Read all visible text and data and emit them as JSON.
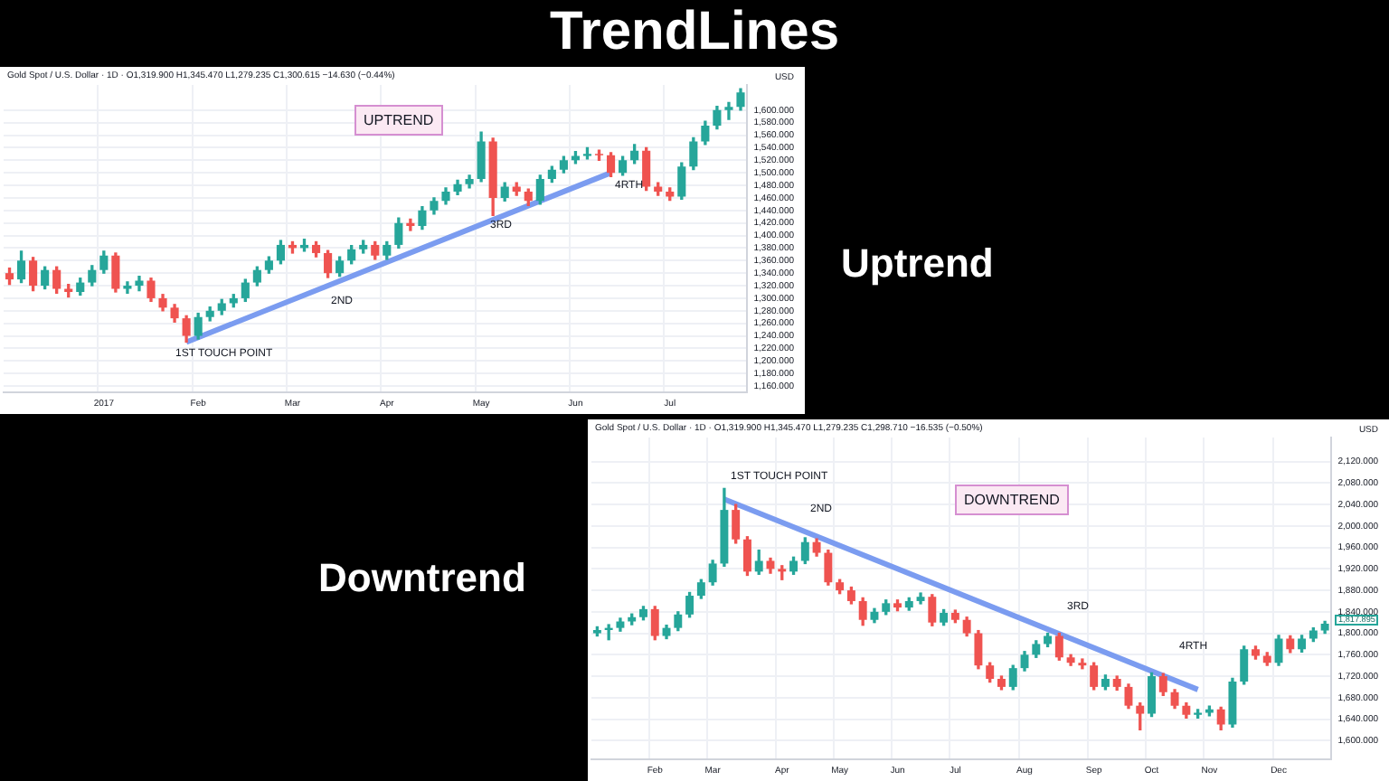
{
  "chart_data": [
    {
      "type": "candlestick",
      "title": "TrendLines",
      "subtitle": "Gold Spot / U.S. Dollar · 1D · O1,319.900 H1,345.470 L1,279.235 C1,300.615 −14.630 (−0.44%)",
      "ylabel": "USD",
      "categories": [
        null,
        null,
        null,
        null,
        null,
        null,
        null,
        null,
        "2017",
        null,
        null,
        null,
        null,
        null,
        null,
        null,
        "Feb",
        null,
        null,
        null,
        null,
        null,
        null,
        null,
        "Mar",
        null,
        null,
        null,
        null,
        null,
        null,
        null,
        "Apr",
        null,
        null,
        null,
        null,
        null,
        null,
        null,
        "May",
        null,
        null,
        null,
        null,
        null,
        null,
        null,
        "Jun",
        null,
        null,
        null,
        null,
        null,
        null,
        null,
        "Jul",
        null,
        null,
        null,
        null,
        null,
        null
      ],
      "ohlc": [
        [
          1340,
          1348,
          1322,
          1330
        ],
        [
          1330,
          1375,
          1325,
          1360
        ],
        [
          1360,
          1365,
          1312,
          1320
        ],
        [
          1320,
          1350,
          1315,
          1345
        ],
        [
          1345,
          1350,
          1308,
          1315
        ],
        [
          1315,
          1322,
          1302,
          1310
        ],
        [
          1310,
          1332,
          1305,
          1325
        ],
        [
          1325,
          1352,
          1320,
          1345
        ],
        [
          1345,
          1375,
          1340,
          1368
        ],
        [
          1368,
          1372,
          1310,
          1315
        ],
        [
          1315,
          1326,
          1308,
          1320
        ],
        [
          1320,
          1335,
          1312,
          1328
        ],
        [
          1328,
          1332,
          1295,
          1300
        ],
        [
          1300,
          1306,
          1280,
          1285
        ],
        [
          1285,
          1290,
          1262,
          1268
        ],
        [
          1268,
          1272,
          1230,
          1240
        ],
        [
          1240,
          1276,
          1235,
          1270
        ],
        [
          1270,
          1286,
          1264,
          1280
        ],
        [
          1280,
          1298,
          1274,
          1292
        ],
        [
          1292,
          1306,
          1286,
          1300
        ],
        [
          1300,
          1330,
          1295,
          1325
        ],
        [
          1325,
          1350,
          1320,
          1345
        ],
        [
          1345,
          1366,
          1340,
          1360
        ],
        [
          1360,
          1392,
          1355,
          1385
        ],
        [
          1385,
          1390,
          1372,
          1380
        ],
        [
          1380,
          1394,
          1375,
          1385
        ],
        [
          1385,
          1390,
          1366,
          1372
        ],
        [
          1372,
          1376,
          1333,
          1340
        ],
        [
          1340,
          1366,
          1335,
          1360
        ],
        [
          1360,
          1384,
          1355,
          1378
        ],
        [
          1378,
          1392,
          1372,
          1385
        ],
        [
          1385,
          1390,
          1362,
          1368
        ],
        [
          1368,
          1390,
          1362,
          1385
        ],
        [
          1385,
          1428,
          1380,
          1420
        ],
        [
          1420,
          1426,
          1408,
          1415
        ],
        [
          1415,
          1446,
          1410,
          1440
        ],
        [
          1440,
          1460,
          1434,
          1455
        ],
        [
          1455,
          1476,
          1450,
          1470
        ],
        [
          1470,
          1488,
          1465,
          1482
        ],
        [
          1482,
          1496,
          1476,
          1490
        ],
        [
          1490,
          1565,
          1486,
          1550
        ],
        [
          1550,
          1555,
          1432,
          1460
        ],
        [
          1460,
          1484,
          1455,
          1478
        ],
        [
          1478,
          1484,
          1464,
          1470
        ],
        [
          1470,
          1474,
          1448,
          1455
        ],
        [
          1455,
          1496,
          1450,
          1490
        ],
        [
          1490,
          1510,
          1485,
          1505
        ],
        [
          1505,
          1526,
          1500,
          1520
        ],
        [
          1520,
          1534,
          1515,
          1527
        ],
        [
          1527,
          1540,
          1522,
          1530
        ],
        [
          1530,
          1536,
          1520,
          1528
        ],
        [
          1528,
          1532,
          1494,
          1500
        ],
        [
          1500,
          1526,
          1496,
          1520
        ],
        [
          1520,
          1545,
          1515,
          1535
        ],
        [
          1535,
          1540,
          1472,
          1478
        ],
        [
          1478,
          1484,
          1464,
          1470
        ],
        [
          1470,
          1476,
          1456,
          1462
        ],
        [
          1462,
          1516,
          1458,
          1510
        ],
        [
          1510,
          1556,
          1505,
          1550
        ],
        [
          1550,
          1582,
          1545,
          1575
        ],
        [
          1575,
          1606,
          1570,
          1600
        ],
        [
          1600,
          1612,
          1585,
          1605
        ],
        [
          1605,
          1634,
          1600,
          1628
        ]
      ],
      "series": [
        {
          "type": "line",
          "color": "#7b9cf0",
          "values": [
            null,
            null,
            null,
            null,
            null,
            null,
            null,
            null,
            null,
            null,
            null,
            null,
            null,
            null,
            null,
            1230,
            null,
            null,
            null,
            null,
            null,
            null,
            null,
            null,
            null,
            null,
            null,
            null,
            null,
            null,
            null,
            null,
            null,
            null,
            null,
            null,
            null,
            null,
            null,
            null,
            null,
            null,
            null,
            null,
            null,
            null,
            null,
            null,
            null,
            null,
            null,
            1500,
            null,
            null,
            null,
            null,
            null,
            null,
            null,
            null,
            null,
            null,
            null
          ]
        }
      ],
      "ylim": [
        1150,
        1640
      ],
      "yticks": [
        {
          "value": 1160,
          "label": "1,160.000"
        },
        {
          "value": 1180,
          "label": "1,180.000"
        },
        {
          "value": 1200,
          "label": "1,200.000"
        },
        {
          "value": 1220,
          "label": "1,220.000"
        },
        {
          "value": 1240,
          "label": "1,240.000"
        },
        {
          "value": 1260,
          "label": "1,260.000"
        },
        {
          "value": 1280,
          "label": "1,280.000"
        },
        {
          "value": 1300,
          "label": "1,300.000"
        },
        {
          "value": 1320,
          "label": "1,320.000"
        },
        {
          "value": 1340,
          "label": "1,340.000"
        },
        {
          "value": 1360,
          "label": "1,360.000"
        },
        {
          "value": 1380,
          "label": "1,380.000"
        },
        {
          "value": 1400,
          "label": "1,400.000"
        },
        {
          "value": 1420,
          "label": "1,420.000"
        },
        {
          "value": 1440,
          "label": "1,440.000"
        },
        {
          "value": 1460,
          "label": "1,460.000"
        },
        {
          "value": 1480,
          "label": "1,480.000"
        },
        {
          "value": 1500,
          "label": "1,500.000"
        },
        {
          "value": 1520,
          "label": "1,520.000"
        },
        {
          "value": 1540,
          "label": "1,540.000"
        },
        {
          "value": 1560,
          "label": "1,560.000"
        },
        {
          "value": 1580,
          "label": "1,580.000"
        },
        {
          "value": 1600,
          "label": "1,600.000"
        }
      ],
      "grid": true,
      "annotations": [
        "UPTREND",
        "1ST TOUCH POINT",
        "2ND",
        "3RD",
        "4RTH",
        "Uptrend"
      ]
    },
    {
      "type": "candlestick",
      "subtitle": "Gold Spot / U.S. Dollar · 1D · O1,319.900 H1,345.470 L1,279.235 C1,298.710 −16.535 (−0.50%)",
      "ylabel": "USD",
      "categories": [
        null,
        null,
        null,
        null,
        null,
        "Feb",
        null,
        null,
        null,
        null,
        "Mar",
        null,
        null,
        null,
        null,
        null,
        "Apr",
        null,
        null,
        null,
        null,
        "May",
        null,
        null,
        null,
        null,
        "Jun",
        null,
        null,
        null,
        null,
        "Jul",
        null,
        null,
        null,
        null,
        null,
        "Aug",
        null,
        null,
        null,
        null,
        null,
        "Sep",
        null,
        null,
        null,
        null,
        "Oct",
        null,
        null,
        null,
        null,
        "Nov",
        null,
        null,
        null,
        null,
        null,
        "Dec",
        null,
        null,
        null,
        null
      ],
      "ohlc": [
        [
          1800,
          1812,
          1795,
          1806
        ],
        [
          1806,
          1816,
          1788,
          1810
        ],
        [
          1810,
          1828,
          1804,
          1822
        ],
        [
          1822,
          1836,
          1816,
          1830
        ],
        [
          1830,
          1850,
          1825,
          1845
        ],
        [
          1845,
          1850,
          1788,
          1795
        ],
        [
          1795,
          1815,
          1790,
          1810
        ],
        [
          1810,
          1840,
          1805,
          1835
        ],
        [
          1835,
          1876,
          1830,
          1870
        ],
        [
          1870,
          1900,
          1865,
          1895
        ],
        [
          1895,
          1936,
          1890,
          1930
        ],
        [
          1930,
          2070,
          1925,
          2030
        ],
        [
          2030,
          2040,
          1968,
          1975
        ],
        [
          1975,
          1980,
          1908,
          1915
        ],
        [
          1915,
          1955,
          1910,
          1935
        ],
        [
          1935,
          1940,
          1912,
          1920
        ],
        [
          1920,
          1926,
          1900,
          1915
        ],
        [
          1915,
          1942,
          1910,
          1935
        ],
        [
          1935,
          1978,
          1930,
          1970
        ],
        [
          1970,
          1976,
          1944,
          1950
        ],
        [
          1950,
          1955,
          1890,
          1895
        ],
        [
          1895,
          1900,
          1874,
          1880
        ],
        [
          1880,
          1886,
          1855,
          1860
        ],
        [
          1860,
          1866,
          1815,
          1825
        ],
        [
          1825,
          1846,
          1820,
          1840
        ],
        [
          1840,
          1862,
          1835,
          1856
        ],
        [
          1856,
          1862,
          1842,
          1848
        ],
        [
          1848,
          1866,
          1843,
          1860
        ],
        [
          1860,
          1875,
          1855,
          1868
        ],
        [
          1868,
          1872,
          1814,
          1820
        ],
        [
          1820,
          1844,
          1815,
          1838
        ],
        [
          1838,
          1843,
          1820,
          1825
        ],
        [
          1825,
          1830,
          1795,
          1800
        ],
        [
          1800,
          1805,
          1734,
          1740
        ],
        [
          1740,
          1745,
          1709,
          1715
        ],
        [
          1715,
          1720,
          1695,
          1700
        ],
        [
          1700,
          1740,
          1695,
          1735
        ],
        [
          1735,
          1766,
          1730,
          1760
        ],
        [
          1760,
          1786,
          1755,
          1780
        ],
        [
          1780,
          1800,
          1775,
          1795
        ],
        [
          1795,
          1800,
          1750,
          1755
        ],
        [
          1755,
          1760,
          1740,
          1745
        ],
        [
          1745,
          1752,
          1734,
          1740
        ],
        [
          1740,
          1745,
          1695,
          1700
        ],
        [
          1700,
          1722,
          1695,
          1715
        ],
        [
          1715,
          1720,
          1694,
          1700
        ],
        [
          1700,
          1705,
          1660,
          1665
        ],
        [
          1665,
          1670,
          1620,
          1650
        ],
        [
          1650,
          1726,
          1645,
          1720
        ],
        [
          1720,
          1725,
          1684,
          1690
        ],
        [
          1690,
          1695,
          1660,
          1665
        ],
        [
          1665,
          1670,
          1642,
          1648
        ],
        [
          1648,
          1658,
          1642,
          1652
        ],
        [
          1652,
          1664,
          1646,
          1658
        ],
        [
          1658,
          1662,
          1620,
          1630
        ],
        [
          1630,
          1716,
          1625,
          1710
        ],
        [
          1710,
          1776,
          1705,
          1770
        ],
        [
          1770,
          1776,
          1752,
          1758
        ],
        [
          1758,
          1764,
          1740,
          1745
        ],
        [
          1745,
          1796,
          1740,
          1790
        ],
        [
          1790,
          1795,
          1764,
          1770
        ],
        [
          1770,
          1796,
          1765,
          1790
        ],
        [
          1790,
          1810,
          1785,
          1805
        ],
        [
          1805,
          1822,
          1800,
          1818
        ]
      ],
      "series": [
        {
          "type": "line",
          "color": "#7b9cf0",
          "values": [
            null,
            null,
            null,
            null,
            null,
            null,
            null,
            null,
            null,
            null,
            null,
            2050,
            null,
            null,
            null,
            null,
            null,
            null,
            null,
            null,
            null,
            null,
            null,
            null,
            null,
            null,
            null,
            null,
            null,
            null,
            null,
            null,
            null,
            null,
            null,
            null,
            null,
            null,
            null,
            null,
            null,
            null,
            null,
            null,
            null,
            null,
            null,
            null,
            null,
            null,
            null,
            null,
            1695,
            null,
            null,
            null,
            null,
            null,
            null,
            null,
            null,
            null,
            null,
            null
          ]
        }
      ],
      "ylim": [
        1565,
        2165
      ],
      "yticks": [
        {
          "value": 1600,
          "label": "1,600.000"
        },
        {
          "value": 1640,
          "label": "1,640.000"
        },
        {
          "value": 1680,
          "label": "1,680.000"
        },
        {
          "value": 1720,
          "label": "1,720.000"
        },
        {
          "value": 1760,
          "label": "1,760.000"
        },
        {
          "value": 1800,
          "label": "1,800.000"
        },
        {
          "value": 1840,
          "label": "1,840.000"
        },
        {
          "value": 1880,
          "label": "1,880.000"
        },
        {
          "value": 1920,
          "label": "1,920.000"
        },
        {
          "value": 1960,
          "label": "1,960.000"
        },
        {
          "value": 2000,
          "label": "2,000.000"
        },
        {
          "value": 2040,
          "label": "2,040.000"
        },
        {
          "value": 2080,
          "label": "2,080.000"
        },
        {
          "value": 2120,
          "label": "2,120.000"
        }
      ],
      "grid": true,
      "annotations": [
        "1ST TOUCH POINT",
        "2ND",
        "DOWNTREND",
        "3RD",
        "4RTH",
        "1,817.895",
        "Downtrend"
      ]
    }
  ]
}
